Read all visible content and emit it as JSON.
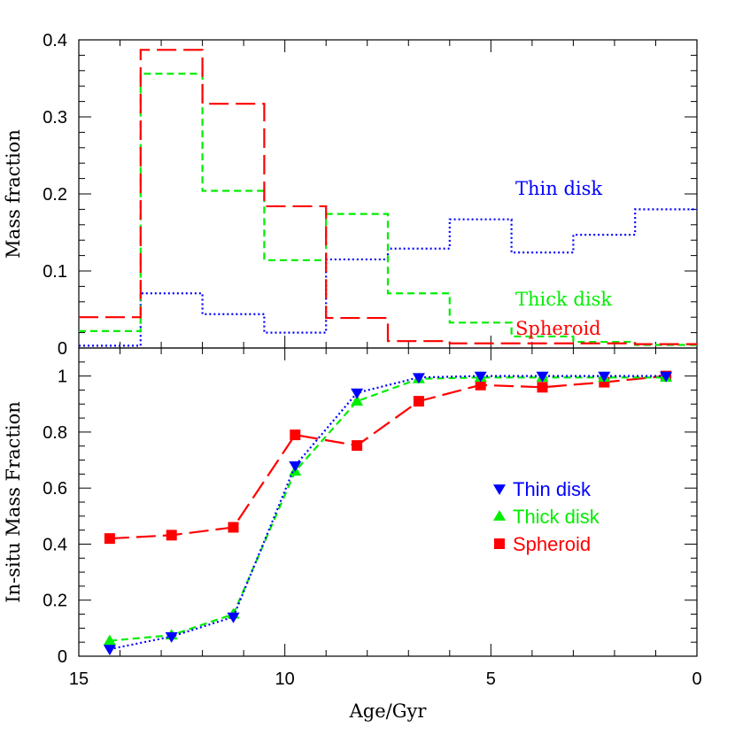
{
  "chart_data": [
    {
      "type": "line",
      "panel": "top",
      "style": "step",
      "ylabel": "Mass fraction",
      "xlim": [
        15,
        0
      ],
      "ylim": [
        0,
        0.4
      ],
      "yticks": [
        0,
        0.1,
        0.2,
        0.3,
        0.4
      ],
      "ytick_labels": [
        "0",
        "0.1",
        "0.2",
        "0.3",
        "0.4"
      ],
      "bin_edges": [
        15,
        13.5,
        12,
        10.5,
        9,
        7.5,
        6,
        4.5,
        3,
        1.5,
        0
      ],
      "series": [
        {
          "name": "Thin disk",
          "color": "#0000ff",
          "dash": "dotted",
          "values": [
            0.003,
            0.071,
            0.044,
            0.02,
            0.115,
            0.129,
            0.167,
            0.124,
            0.147,
            0.18
          ]
        },
        {
          "name": "Thick disk",
          "color": "#00ee00",
          "dash": "short-dash",
          "values": [
            0.022,
            0.356,
            0.204,
            0.114,
            0.174,
            0.071,
            0.033,
            0.015,
            0.008,
            0.004
          ]
        },
        {
          "name": "Spheroid",
          "color": "#ff0000",
          "dash": "long-dash",
          "values": [
            0.04,
            0.387,
            0.317,
            0.184,
            0.039,
            0.009,
            0.006,
            0.006,
            0.006,
            0.005
          ]
        }
      ],
      "annotations": [
        {
          "text": "Thin disk",
          "color": "#0000ff"
        },
        {
          "text": "Thick disk",
          "color": "#00ee00"
        },
        {
          "text": "Spheroid",
          "color": "#ff0000"
        }
      ]
    },
    {
      "type": "line",
      "panel": "bottom",
      "xlabel": "Age/Gyr",
      "ylabel": "In-situ Mass Fraction",
      "xlim": [
        15,
        0
      ],
      "ylim": [
        0,
        1.1
      ],
      "xticks": [
        15,
        10,
        5,
        0
      ],
      "xtick_labels": [
        "15",
        "10",
        "5",
        "0"
      ],
      "yticks": [
        0,
        0.2,
        0.4,
        0.6,
        0.8,
        1
      ],
      "ytick_labels": [
        "0",
        "0.2",
        "0.4",
        "0.6",
        "0.8",
        "1"
      ],
      "x": [
        14.25,
        12.75,
        11.25,
        9.75,
        8.25,
        6.75,
        5.25,
        3.75,
        2.25,
        0.75
      ],
      "series": [
        {
          "name": "Thin disk",
          "color": "#0000ff",
          "dash": "dotted",
          "marker": "triangle-down",
          "values": [
            0.025,
            0.07,
            0.14,
            0.68,
            0.94,
            0.995,
            1.0,
            1.0,
            1.0,
            1.0
          ]
        },
        {
          "name": "Thick disk",
          "color": "#00ee00",
          "dash": "short-dash",
          "marker": "triangle-up",
          "values": [
            0.055,
            0.075,
            0.15,
            0.66,
            0.91,
            0.99,
            0.995,
            0.995,
            0.995,
            0.995
          ]
        },
        {
          "name": "Spheroid",
          "color": "#ff0000",
          "dash": "long-dash",
          "marker": "square",
          "values": [
            0.42,
            0.432,
            0.46,
            0.79,
            0.752,
            0.91,
            0.968,
            0.96,
            0.978,
            1.0
          ]
        }
      ],
      "legend": {
        "position": "center-right",
        "entries": [
          {
            "label": "Thin disk",
            "color": "#0000ff",
            "marker": "triangle-down"
          },
          {
            "label": "Thick disk",
            "color": "#00ee00",
            "marker": "triangle-up"
          },
          {
            "label": "Spheroid",
            "color": "#ff0000",
            "marker": "square"
          }
        ]
      }
    }
  ]
}
